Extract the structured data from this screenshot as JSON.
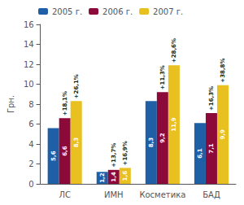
{
  "chart_data": {
    "type": "bar",
    "categories": [
      "ЛС",
      "ИМН",
      "Косметика",
      "БАД"
    ],
    "series": [
      {
        "name": "2005 г.",
        "color": "#1f5fa6",
        "values": [
          5.6,
          1.2,
          8.3,
          6.1
        ],
        "value_labels": [
          "5,6",
          "1,2",
          "8,3",
          "6,1"
        ]
      },
      {
        "name": "2006 г.",
        "color": "#8b0a3a",
        "values": [
          6.6,
          1.4,
          9.2,
          7.1
        ],
        "value_labels": [
          "6,6",
          "1,4",
          "9,2",
          "7,1"
        ],
        "annotations": [
          "+18,1%",
          "+13,7%",
          "+11,3%",
          "+16,3%"
        ]
      },
      {
        "name": "2007 г.",
        "color": "#e8c020",
        "values": [
          8.3,
          1.6,
          11.9,
          9.9
        ],
        "value_labels": [
          "8,3",
          "1,6",
          "11,9",
          "9,9"
        ],
        "annotations": [
          "+26,1%",
          "+16,9%",
          "+28,6%",
          "+38,8%"
        ]
      }
    ],
    "ylabel": "Грн.",
    "ylim": [
      0,
      16
    ],
    "yticks": [
      0,
      2,
      4,
      6,
      8,
      10,
      12,
      14,
      16
    ],
    "data_labels": true,
    "legend": "upper left",
    "grid": false
  }
}
